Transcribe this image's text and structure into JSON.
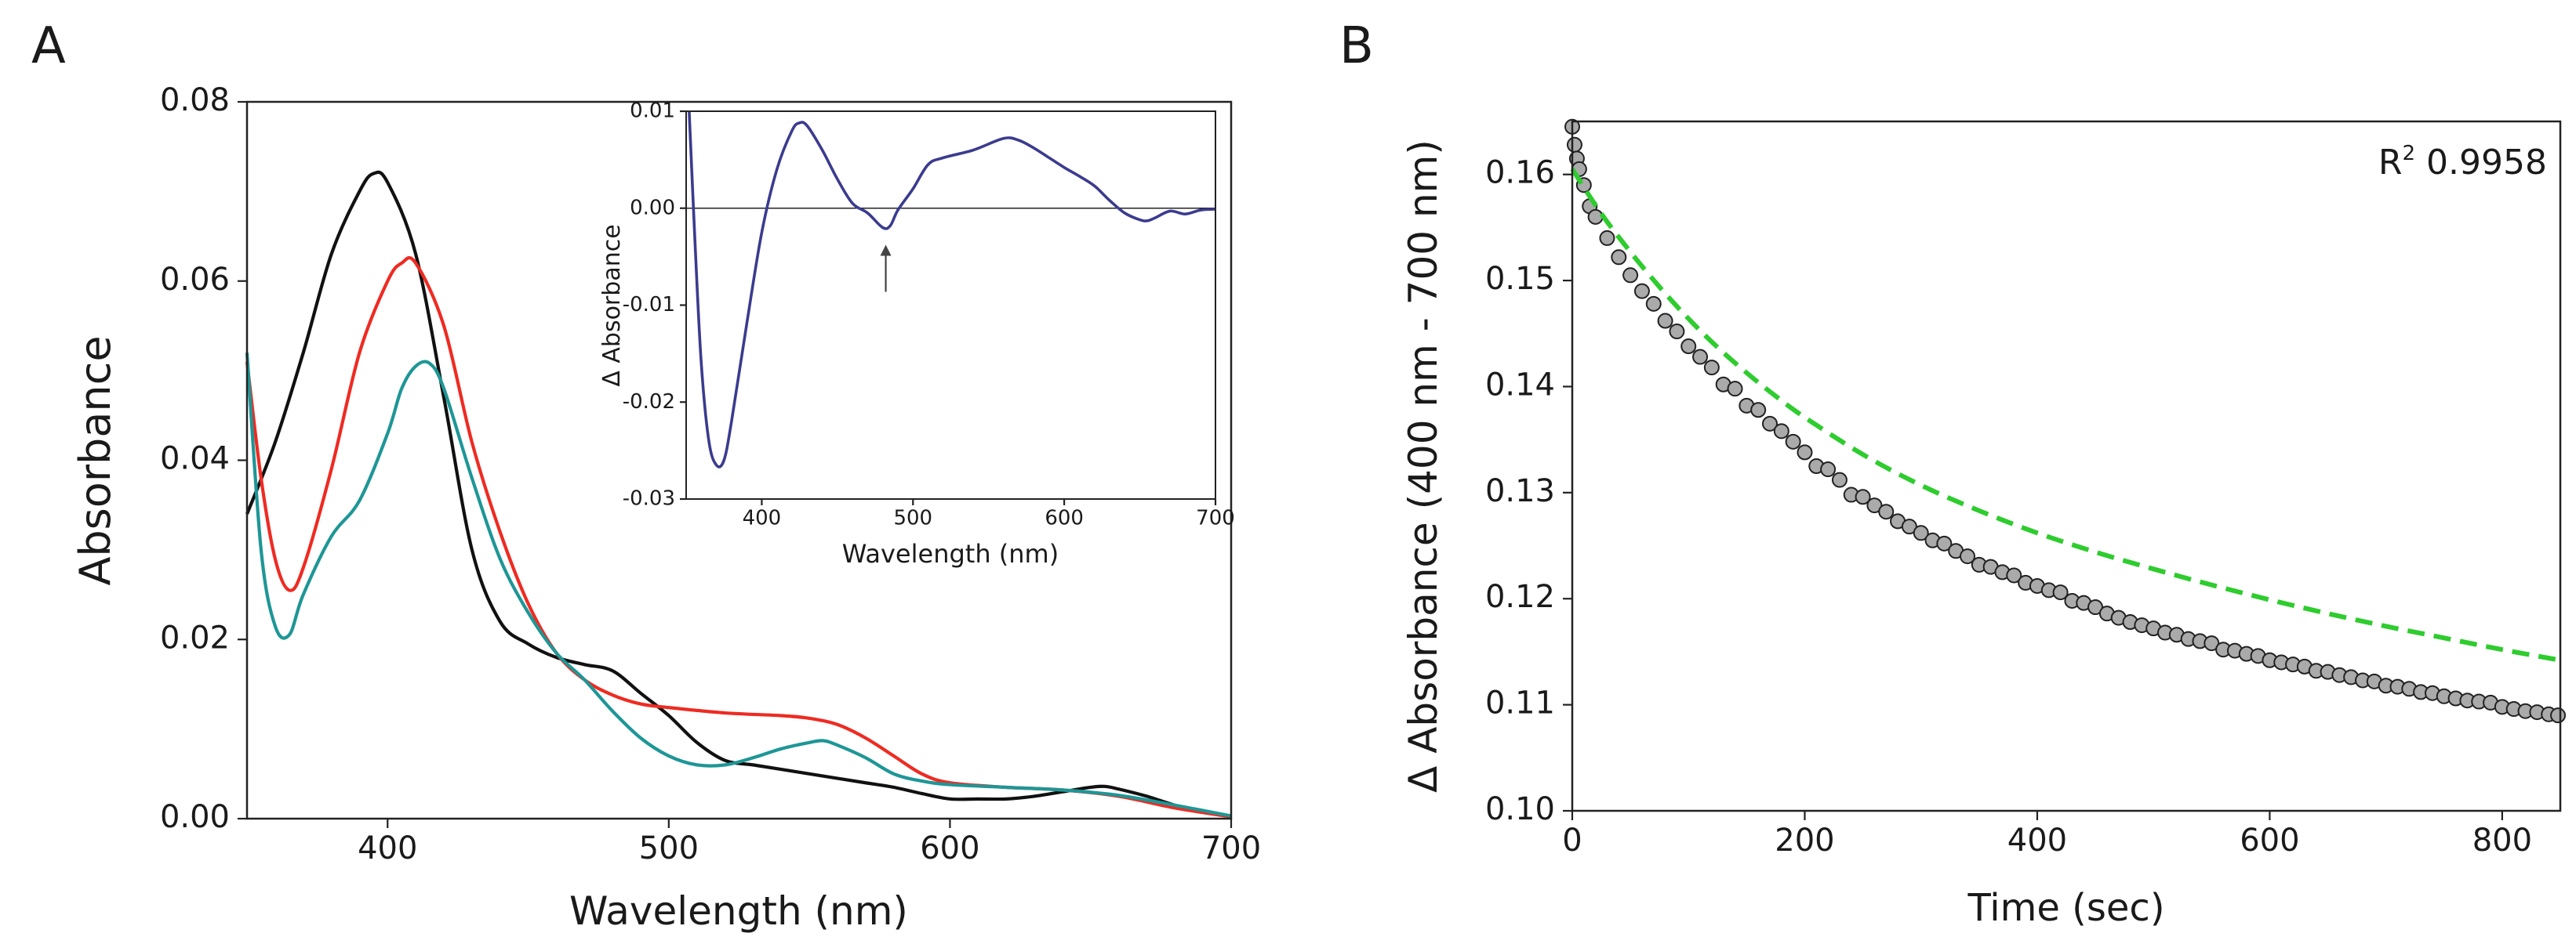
{
  "panel_labels": {
    "a": "A",
    "b": "B"
  },
  "chart_data": [
    {
      "id": "A",
      "type": "line",
      "title": "",
      "xlabel": "Wavelength (nm)",
      "ylabel": "Absorbance",
      "xlim": [
        350,
        700
      ],
      "ylim": [
        0,
        0.08
      ],
      "xticks": [
        400,
        500,
        600,
        700
      ],
      "xtick_labels": [
        "400",
        "500",
        "600",
        "700"
      ],
      "yticks": [
        0,
        0.02,
        0.04,
        0.06,
        0.08
      ],
      "ytick_labels": [
        "0.00",
        "0.02",
        "0.04",
        "0.06",
        "0.08"
      ],
      "grid": false,
      "series": [
        {
          "name": "black",
          "color": "#111111",
          "x": [
            350,
            360,
            370,
            380,
            390,
            395,
            400,
            410,
            420,
            430,
            440,
            450,
            460,
            470,
            480,
            490,
            500,
            510,
            520,
            530,
            540,
            550,
            560,
            570,
            580,
            590,
            600,
            610,
            620,
            630,
            640,
            650,
            655,
            660,
            670,
            680,
            690,
            700
          ],
          "y": [
            0.034,
            0.042,
            0.052,
            0.063,
            0.07,
            0.072,
            0.071,
            0.063,
            0.047,
            0.03,
            0.022,
            0.0195,
            0.018,
            0.0172,
            0.0165,
            0.014,
            0.0115,
            0.0085,
            0.0065,
            0.006,
            0.0055,
            0.005,
            0.0045,
            0.004,
            0.0035,
            0.0028,
            0.0022,
            0.0022,
            0.0022,
            0.0025,
            0.003,
            0.0035,
            0.0036,
            0.0033,
            0.0025,
            0.0015,
            0.0008,
            0.0003
          ]
        },
        {
          "name": "red",
          "color": "#ee2b22",
          "x": [
            350,
            355,
            360,
            365,
            370,
            380,
            390,
            400,
            405,
            410,
            420,
            430,
            440,
            450,
            460,
            470,
            480,
            490,
            500,
            520,
            540,
            550,
            560,
            570,
            580,
            590,
            600,
            620,
            640,
            660,
            680,
            700
          ],
          "y": [
            0.051,
            0.038,
            0.029,
            0.0255,
            0.028,
            0.039,
            0.052,
            0.06,
            0.062,
            0.062,
            0.055,
            0.042,
            0.032,
            0.024,
            0.0185,
            0.0155,
            0.0138,
            0.0128,
            0.0124,
            0.0118,
            0.0115,
            0.0112,
            0.0105,
            0.009,
            0.007,
            0.005,
            0.004,
            0.0035,
            0.0032,
            0.0025,
            0.0012,
            0.0002
          ]
        },
        {
          "name": "teal",
          "color": "#1e9696",
          "x": [
            350,
            355,
            360,
            365,
            370,
            380,
            390,
            400,
            405,
            410,
            415,
            420,
            430,
            440,
            450,
            460,
            470,
            480,
            490,
            500,
            510,
            520,
            530,
            540,
            550,
            555,
            560,
            570,
            580,
            590,
            600,
            620,
            640,
            660,
            680,
            700
          ],
          "y": [
            0.052,
            0.03,
            0.0215,
            0.0205,
            0.025,
            0.0315,
            0.0355,
            0.043,
            0.048,
            0.0505,
            0.0508,
            0.048,
            0.038,
            0.029,
            0.023,
            0.0185,
            0.0155,
            0.012,
            0.009,
            0.007,
            0.006,
            0.006,
            0.0068,
            0.0078,
            0.0085,
            0.0087,
            0.0082,
            0.0068,
            0.005,
            0.0042,
            0.0038,
            0.0035,
            0.0032,
            0.0026,
            0.0015,
            0.0003
          ]
        }
      ]
    },
    {
      "id": "A-inset",
      "type": "line",
      "title": "",
      "xlabel": "Wavelength (nm)",
      "ylabel": "Δ Absorbance",
      "xlim": [
        350,
        700
      ],
      "ylim": [
        -0.03,
        0.01
      ],
      "xticks": [
        400,
        500,
        600,
        700
      ],
      "xtick_labels": [
        "400",
        "500",
        "600",
        "700"
      ],
      "yticks": [
        -0.03,
        -0.02,
        -0.01,
        0,
        0.01
      ],
      "ytick_labels": [
        "-0.03",
        "-0.02",
        "-0.01",
        "0.00",
        "0.01"
      ],
      "zero_line": true,
      "annotation": {
        "type": "arrow",
        "x": 482,
        "y": -0.002
      },
      "series": [
        {
          "name": "difference",
          "color": "#3b3b8f",
          "x": [
            352,
            356,
            360,
            365,
            370,
            375,
            380,
            390,
            400,
            410,
            420,
            425,
            430,
            440,
            450,
            460,
            470,
            480,
            485,
            490,
            500,
            510,
            520,
            540,
            560,
            570,
            580,
            590,
            600,
            610,
            620,
            630,
            640,
            650,
            655,
            660,
            670,
            680,
            690,
            700
          ],
          "y": [
            0.01,
            -0.004,
            -0.016,
            -0.024,
            -0.0265,
            -0.026,
            -0.022,
            -0.012,
            -0.0025,
            0.004,
            0.008,
            0.0088,
            0.0085,
            0.006,
            0.003,
            0.0005,
            -0.0005,
            -0.002,
            -0.0018,
            -0.0002,
            0.002,
            0.0045,
            0.0052,
            0.006,
            0.0072,
            0.007,
            0.0062,
            0.0052,
            0.0042,
            0.0033,
            0.0023,
            0.0008,
            -0.0005,
            -0.0012,
            -0.0013,
            -0.001,
            -0.0003,
            -0.0006,
            -0.0002,
            -0.0001
          ]
        }
      ]
    },
    {
      "id": "B",
      "type": "scatter",
      "title": "",
      "xlabel": "Time (sec)",
      "ylabel": "Δ Absorbance (400 nm - 700 nm)",
      "xlim": [
        0,
        850
      ],
      "ylim": [
        0.1,
        0.165
      ],
      "xticks": [
        0,
        200,
        400,
        600,
        800
      ],
      "xtick_labels": [
        "0",
        "200",
        "400",
        "600",
        "800"
      ],
      "yticks": [
        0.1,
        0.11,
        0.12,
        0.13,
        0.14,
        0.15,
        0.16
      ],
      "ytick_labels": [
        "0.10",
        "0.11",
        "0.12",
        "0.13",
        "0.14",
        "0.15",
        "0.16"
      ],
      "annotation_text": "R",
      "annotation_sup": "2",
      "annotation_value": "0.9958",
      "series": [
        {
          "name": "data",
          "marker_fill": "#aaaaaa",
          "marker_edge": "#222222",
          "x": [
            0,
            2,
            4,
            6,
            10,
            15,
            20,
            30,
            40,
            50,
            60,
            70,
            80,
            90,
            100,
            110,
            120,
            130,
            140,
            150,
            160,
            170,
            180,
            190,
            200,
            210,
            220,
            230,
            240,
            250,
            260,
            270,
            280,
            290,
            300,
            310,
            320,
            330,
            340,
            350,
            360,
            370,
            380,
            390,
            400,
            410,
            420,
            430,
            440,
            450,
            460,
            470,
            480,
            490,
            500,
            510,
            520,
            530,
            540,
            550,
            560,
            570,
            580,
            590,
            600,
            610,
            620,
            630,
            640,
            650,
            660,
            670,
            680,
            690,
            700,
            710,
            720,
            730,
            740,
            750,
            760,
            770,
            780,
            790,
            800,
            810,
            820,
            830,
            840,
            848
          ],
          "y": [
            0.1645,
            0.1628,
            0.1615,
            0.1605,
            0.159,
            0.157,
            0.156,
            0.154,
            0.1522,
            0.1505,
            0.149,
            0.1478,
            0.1462,
            0.1452,
            0.1438,
            0.1428,
            0.1418,
            0.1402,
            0.1398,
            0.1382,
            0.1378,
            0.1365,
            0.1358,
            0.1348,
            0.1338,
            0.1325,
            0.1322,
            0.1312,
            0.1298,
            0.1296,
            0.1288,
            0.1282,
            0.1273,
            0.1268,
            0.1262,
            0.1255,
            0.1252,
            0.1245,
            0.124,
            0.1232,
            0.123,
            0.1225,
            0.1222,
            0.1215,
            0.1212,
            0.1208,
            0.1206,
            0.1198,
            0.1196,
            0.1192,
            0.1186,
            0.1182,
            0.1178,
            0.1175,
            0.1172,
            0.1168,
            0.1166,
            0.1162,
            0.116,
            0.1158,
            0.1152,
            0.1151,
            0.1148,
            0.1146,
            0.1142,
            0.114,
            0.1138,
            0.1136,
            0.1132,
            0.1131,
            0.1128,
            0.1126,
            0.1123,
            0.1122,
            0.1118,
            0.1117,
            0.1115,
            0.1112,
            0.1111,
            0.1108,
            0.1106,
            0.1104,
            0.1103,
            0.1102,
            0.1098,
            0.1096,
            0.1094,
            0.1093,
            0.1091,
            0.109
          ]
        },
        {
          "name": "fit",
          "color": "#2ecc2e",
          "dash": true,
          "x": [
            0,
            25,
            50,
            75,
            100,
            125,
            150,
            175,
            200,
            250,
            300,
            350,
            400,
            450,
            500,
            550,
            600,
            650,
            700,
            750,
            800,
            850
          ],
          "y": [
            0.1605,
            0.1563,
            0.1527,
            0.1494,
            0.1464,
            0.1437,
            0.1413,
            0.1391,
            0.1371,
            0.1336,
            0.1307,
            0.1283,
            0.1262,
            0.1244,
            0.1228,
            0.1213,
            0.1199,
            0.1186,
            0.1174,
            0.1163,
            0.1152,
            0.1142
          ]
        }
      ]
    }
  ]
}
